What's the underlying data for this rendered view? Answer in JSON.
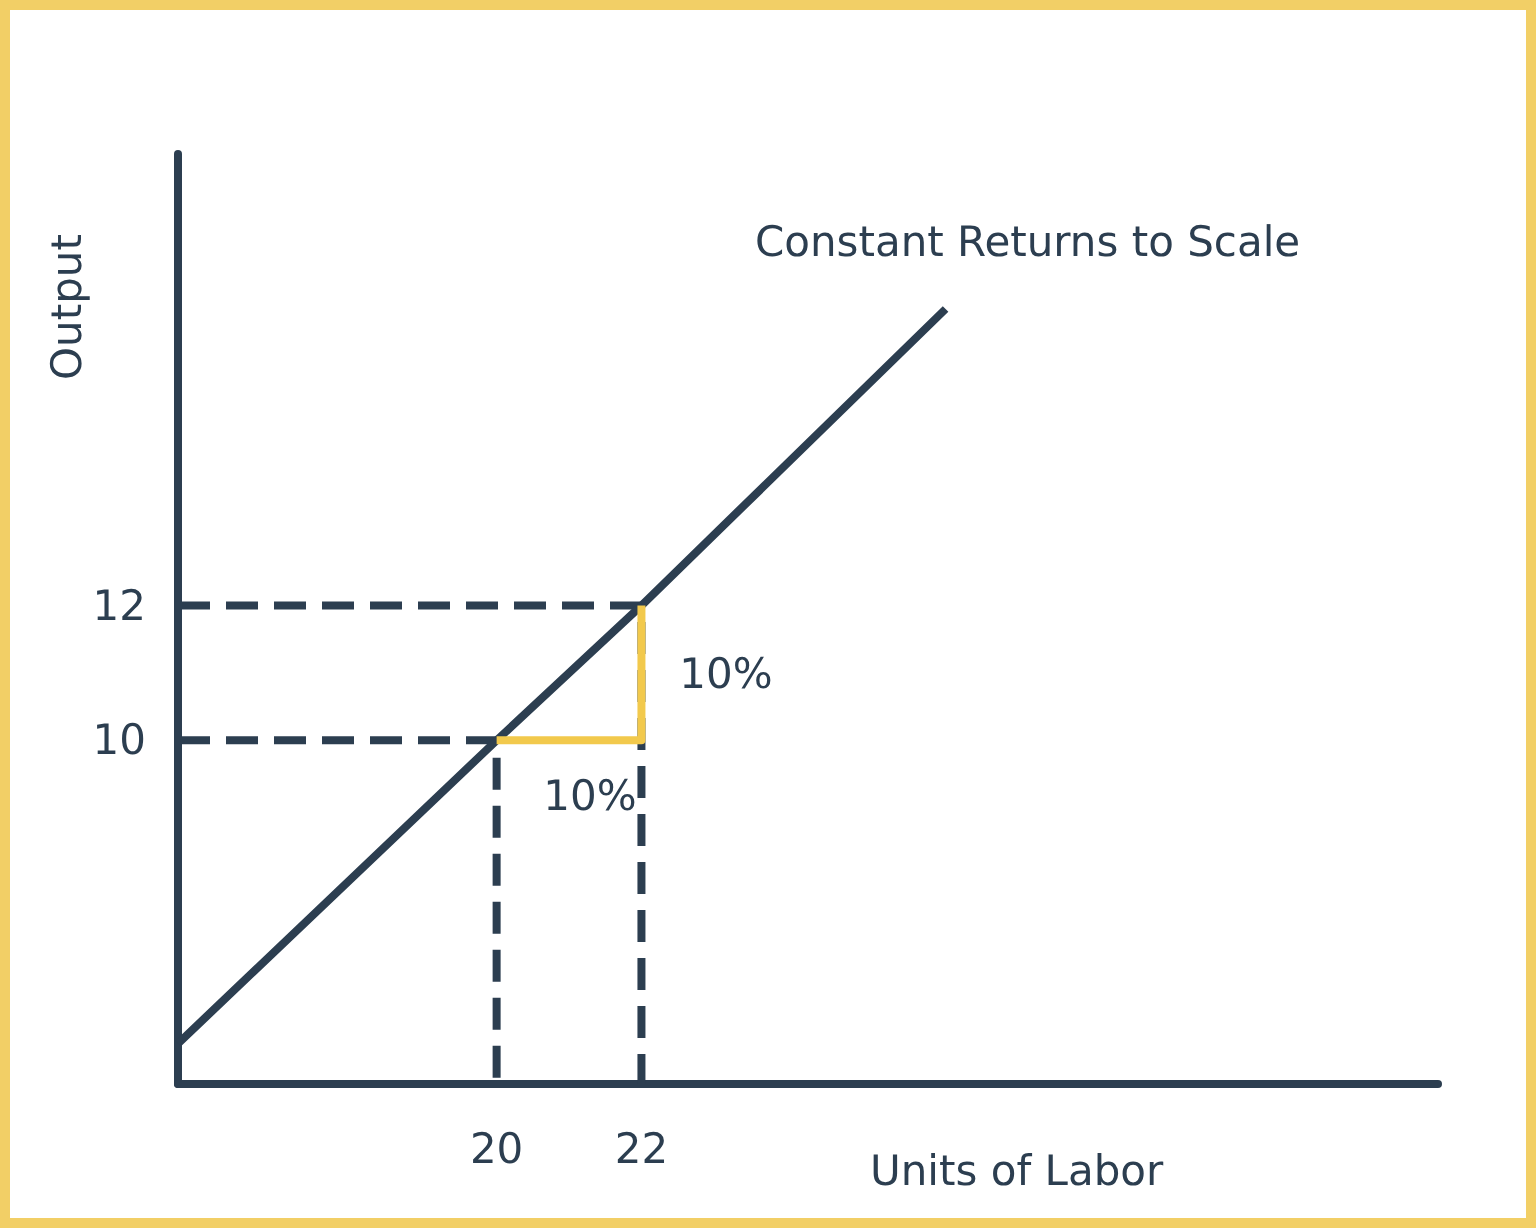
{
  "chart_data": {
    "type": "line",
    "xlabel": "Units of Labor",
    "ylabel": "Output",
    "xlim": [
      15.6,
      33
    ],
    "ylim": [
      4.9,
      18.7
    ],
    "xticks": [
      20,
      22
    ],
    "yticks": [
      10,
      12
    ],
    "grid": false,
    "legend": false,
    "marker": "none",
    "series": [
      {
        "name": "Constant Returns to Scale",
        "color": "#2c3e50",
        "x": [
          15.6,
          20,
          22,
          26.2
        ],
        "values": [
          5.5,
          10,
          12,
          16.4
        ],
        "line_style": "solid"
      },
      {
        "color": "#2c3e50",
        "x": [
          15.6,
          20,
          20
        ],
        "values": [
          10,
          10,
          4.9
        ],
        "line_style": "dashed"
      },
      {
        "color": "#2c3e50",
        "x": [
          15.6,
          22,
          22
        ],
        "values": [
          12,
          12,
          4.9
        ],
        "line_style": "dashed"
      },
      {
        "color": "#f2c94c",
        "x": [
          20,
          22,
          22
        ],
        "values": [
          10,
          10,
          12
        ],
        "line_style": "solid"
      }
    ],
    "annotations": [
      "10%",
      "10%"
    ]
  }
}
